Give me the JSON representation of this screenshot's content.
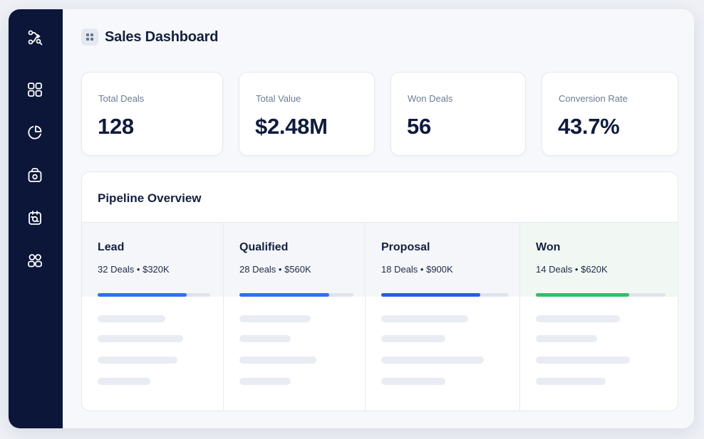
{
  "app": {
    "title": "Sales Dashboard",
    "badge_icon": "grid-dots-icon"
  },
  "sidebar": {
    "items": [
      {
        "icon": "workflow-icon",
        "active": false
      },
      {
        "icon": "dashboard-grid-icon",
        "active": false
      },
      {
        "icon": "pie-chart-icon",
        "active": false
      },
      {
        "icon": "bag-icon",
        "active": false
      },
      {
        "icon": "clipboard-icon",
        "active": false
      },
      {
        "icon": "users-icon",
        "active": false
      }
    ]
  },
  "stats": [
    {
      "label": "Total Deals",
      "value": "128"
    },
    {
      "label": "Total Value",
      "value": "$2.48M"
    },
    {
      "label": "Won Deals",
      "value": "56"
    },
    {
      "label": "Conversion Rate",
      "value": "43.7%"
    }
  ],
  "pipeline": {
    "title": "Pipeline Overview",
    "stages": [
      {
        "name": "Lead",
        "meta": "32 Deals • $320K",
        "progress": 0.79,
        "color": "#2f6ff0"
      },
      {
        "name": "Qualified",
        "meta": "28 Deals • $560K",
        "progress": 0.79,
        "color": "#2f6ff0"
      },
      {
        "name": "Proposal",
        "meta": "18 Deals • $900K",
        "progress": 0.78,
        "color": "#2a5ae8"
      },
      {
        "name": "Won",
        "meta": "14 Deals • $620K",
        "progress": 0.72,
        "color": "#2fbf6d"
      }
    ]
  },
  "colors": {
    "sidebar_bg": "#0b1638",
    "accent_blue": "#2f6ff0",
    "accent_green": "#2fbf6d"
  }
}
